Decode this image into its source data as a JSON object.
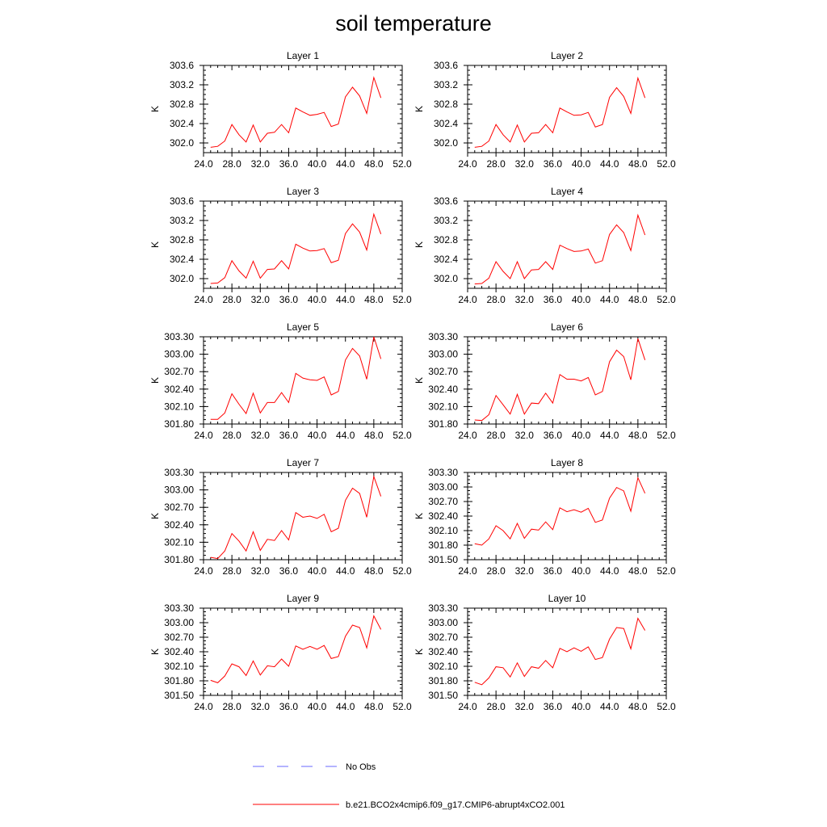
{
  "title": "soil temperature",
  "colors": {
    "model": "#ff0000",
    "obs": "#6a6aff",
    "axis": "#000000"
  },
  "legend": {
    "obs_label": "No Obs",
    "model_label": "b.e21.BCO2x4cmip6.f09_g17.CMIP6-abrupt4xCO2.001"
  },
  "chart_data": [
    {
      "type": "line",
      "title": "Layer 1",
      "ylabel": "K",
      "xlim": [
        24,
        52
      ],
      "xticks": [
        "24.0",
        "28.0",
        "32.0",
        "36.0",
        "40.0",
        "44.0",
        "48.0",
        "52.0"
      ],
      "ylim": [
        301.8,
        303.6
      ],
      "yticks": [
        "302.0",
        "302.4",
        "302.8",
        "303.2",
        "303.6"
      ],
      "series": [
        {
          "name": "b.e21.BCO2x4cmip6.f09_g17.CMIP6-abrupt4xCO2.001",
          "x": [
            25,
            26,
            27,
            28,
            29,
            30,
            31,
            32,
            33,
            34,
            35,
            36,
            37,
            38,
            39,
            40,
            41,
            42,
            43,
            44,
            45,
            46,
            47,
            48,
            49
          ],
          "y": [
            301.91,
            301.93,
            302.04,
            302.38,
            302.17,
            302.02,
            302.37,
            302.02,
            302.2,
            302.22,
            302.38,
            302.21,
            302.72,
            302.64,
            302.57,
            302.59,
            302.63,
            302.34,
            302.39,
            302.95,
            303.15,
            302.97,
            302.61,
            303.35,
            302.93
          ]
        }
      ]
    },
    {
      "type": "line",
      "title": "Layer 2",
      "ylabel": "K",
      "xlim": [
        24,
        52
      ],
      "xticks": [
        "24.0",
        "28.0",
        "32.0",
        "36.0",
        "40.0",
        "44.0",
        "48.0",
        "52.0"
      ],
      "ylim": [
        301.8,
        303.6
      ],
      "yticks": [
        "302.0",
        "302.4",
        "302.8",
        "303.2",
        "303.6"
      ],
      "series": [
        {
          "name": "b.e21.BCO2x4cmip6.f09_g17.CMIP6-abrupt4xCO2.001",
          "x": [
            25,
            26,
            27,
            28,
            29,
            30,
            31,
            32,
            33,
            34,
            35,
            36,
            37,
            38,
            39,
            40,
            41,
            42,
            43,
            44,
            45,
            46,
            47,
            48,
            49
          ],
          "y": [
            301.91,
            301.93,
            302.04,
            302.38,
            302.17,
            302.02,
            302.37,
            302.02,
            302.2,
            302.21,
            302.38,
            302.21,
            302.72,
            302.64,
            302.57,
            302.58,
            302.63,
            302.33,
            302.38,
            302.94,
            303.14,
            302.96,
            302.61,
            303.34,
            302.93
          ]
        }
      ]
    },
    {
      "type": "line",
      "title": "Layer 3",
      "ylabel": "K",
      "xlim": [
        24,
        52
      ],
      "xticks": [
        "24.0",
        "28.0",
        "32.0",
        "36.0",
        "40.0",
        "44.0",
        "48.0",
        "52.0"
      ],
      "ylim": [
        301.8,
        303.6
      ],
      "yticks": [
        "302.0",
        "302.4",
        "302.8",
        "303.2",
        "303.6"
      ],
      "series": [
        {
          "name": "b.e21.BCO2x4cmip6.f09_g17.CMIP6-abrupt4xCO2.001",
          "x": [
            25,
            26,
            27,
            28,
            29,
            30,
            31,
            32,
            33,
            34,
            35,
            36,
            37,
            38,
            39,
            40,
            41,
            42,
            43,
            44,
            45,
            46,
            47,
            48,
            49
          ],
          "y": [
            301.9,
            301.91,
            302.02,
            302.37,
            302.16,
            302.01,
            302.36,
            302.01,
            302.19,
            302.2,
            302.37,
            302.2,
            302.71,
            302.63,
            302.57,
            302.58,
            302.62,
            302.33,
            302.38,
            302.93,
            303.13,
            302.96,
            302.59,
            303.33,
            302.92
          ]
        }
      ]
    },
    {
      "type": "line",
      "title": "Layer 4",
      "ylabel": "K",
      "xlim": [
        24,
        52
      ],
      "xticks": [
        "24.0",
        "28.0",
        "32.0",
        "36.0",
        "40.0",
        "44.0",
        "48.0",
        "52.0"
      ],
      "ylim": [
        301.8,
        303.6
      ],
      "yticks": [
        "302.0",
        "302.4",
        "302.8",
        "303.2",
        "303.6"
      ],
      "series": [
        {
          "name": "b.e21.BCO2x4cmip6.f09_g17.CMIP6-abrupt4xCO2.001",
          "x": [
            25,
            26,
            27,
            28,
            29,
            30,
            31,
            32,
            33,
            34,
            35,
            36,
            37,
            38,
            39,
            40,
            41,
            42,
            43,
            44,
            45,
            46,
            47,
            48,
            49
          ],
          "y": [
            301.89,
            301.9,
            302.01,
            302.35,
            302.15,
            302.0,
            302.35,
            302.0,
            302.18,
            302.19,
            302.35,
            302.19,
            302.69,
            302.62,
            302.56,
            302.57,
            302.61,
            302.32,
            302.37,
            302.91,
            303.11,
            302.95,
            302.58,
            303.31,
            302.9
          ]
        }
      ]
    },
    {
      "type": "line",
      "title": "Layer 5",
      "ylabel": "K",
      "xlim": [
        24,
        52
      ],
      "xticks": [
        "24.0",
        "28.0",
        "32.0",
        "36.0",
        "40.0",
        "44.0",
        "48.0",
        "52.0"
      ],
      "ylim": [
        301.8,
        303.3
      ],
      "yticks": [
        "301.80",
        "302.10",
        "302.40",
        "302.70",
        "303.00",
        "303.30"
      ],
      "series": [
        {
          "name": "b.e21.BCO2x4cmip6.f09_g17.CMIP6-abrupt4xCO2.001",
          "x": [
            25,
            26,
            27,
            28,
            29,
            30,
            31,
            32,
            33,
            34,
            35,
            36,
            37,
            38,
            39,
            40,
            41,
            42,
            43,
            44,
            45,
            46,
            47,
            48,
            49
          ],
          "y": [
            301.88,
            301.88,
            301.99,
            302.32,
            302.14,
            301.98,
            302.33,
            301.99,
            302.17,
            302.17,
            302.34,
            302.17,
            302.67,
            302.59,
            302.56,
            302.55,
            302.61,
            302.3,
            302.36,
            302.9,
            303.1,
            302.97,
            302.57,
            303.3,
            302.92
          ]
        }
      ]
    },
    {
      "type": "line",
      "title": "Layer 6",
      "ylabel": "K",
      "xlim": [
        24,
        52
      ],
      "xticks": [
        "24.0",
        "28.0",
        "32.0",
        "36.0",
        "40.0",
        "44.0",
        "48.0",
        "52.0"
      ],
      "ylim": [
        301.8,
        303.3
      ],
      "yticks": [
        "301.80",
        "302.10",
        "302.40",
        "302.70",
        "303.00",
        "303.30"
      ],
      "series": [
        {
          "name": "b.e21.BCO2x4cmip6.f09_g17.CMIP6-abrupt4xCO2.001",
          "x": [
            25,
            26,
            27,
            28,
            29,
            30,
            31,
            32,
            33,
            34,
            35,
            36,
            37,
            38,
            39,
            40,
            41,
            42,
            43,
            44,
            45,
            46,
            47,
            48,
            49
          ],
          "y": [
            301.87,
            301.86,
            301.96,
            302.29,
            302.13,
            301.97,
            302.31,
            301.97,
            302.16,
            302.15,
            302.33,
            302.16,
            302.65,
            302.57,
            302.57,
            302.54,
            302.6,
            302.3,
            302.36,
            302.87,
            303.07,
            302.96,
            302.56,
            303.27,
            302.9
          ]
        }
      ]
    },
    {
      "type": "line",
      "title": "Layer 7",
      "ylabel": "K",
      "xlim": [
        24,
        52
      ],
      "xticks": [
        "24.0",
        "28.0",
        "32.0",
        "36.0",
        "40.0",
        "44.0",
        "48.0",
        "52.0"
      ],
      "ylim": [
        301.8,
        303.3
      ],
      "yticks": [
        "301.80",
        "302.10",
        "302.40",
        "302.70",
        "303.00",
        "303.30"
      ],
      "series": [
        {
          "name": "b.e21.BCO2x4cmip6.f09_g17.CMIP6-abrupt4xCO2.001",
          "x": [
            25,
            26,
            27,
            28,
            29,
            30,
            31,
            32,
            33,
            34,
            35,
            36,
            37,
            38,
            39,
            40,
            41,
            42,
            43,
            44,
            45,
            46,
            47,
            48,
            49
          ],
          "y": [
            301.84,
            301.82,
            301.95,
            302.25,
            302.12,
            301.95,
            302.28,
            301.96,
            302.15,
            302.13,
            302.3,
            302.14,
            302.61,
            302.53,
            302.55,
            302.51,
            302.58,
            302.28,
            302.34,
            302.82,
            303.03,
            302.94,
            302.53,
            303.23,
            302.89
          ]
        }
      ]
    },
    {
      "type": "line",
      "title": "Layer 8",
      "ylabel": "K",
      "xlim": [
        24,
        52
      ],
      "xticks": [
        "24.0",
        "28.0",
        "32.0",
        "36.0",
        "40.0",
        "44.0",
        "48.0",
        "52.0"
      ],
      "ylim": [
        301.5,
        303.3
      ],
      "yticks": [
        "301.50",
        "301.80",
        "302.10",
        "302.40",
        "302.70",
        "303.00",
        "303.30"
      ],
      "series": [
        {
          "name": "b.e21.BCO2x4cmip6.f09_g17.CMIP6-abrupt4xCO2.001",
          "x": [
            25,
            26,
            27,
            28,
            29,
            30,
            31,
            32,
            33,
            34,
            35,
            36,
            37,
            38,
            39,
            40,
            41,
            42,
            43,
            44,
            45,
            46,
            47,
            48,
            49
          ],
          "y": [
            301.83,
            301.8,
            301.93,
            302.2,
            302.1,
            301.93,
            302.25,
            301.94,
            302.13,
            302.11,
            302.28,
            302.12,
            302.57,
            302.49,
            302.53,
            302.48,
            302.56,
            302.27,
            302.32,
            302.77,
            302.99,
            302.92,
            302.5,
            303.19,
            302.87
          ]
        }
      ]
    },
    {
      "type": "line",
      "title": "Layer 9",
      "ylabel": "K",
      "xlim": [
        24,
        52
      ],
      "xticks": [
        "24.0",
        "28.0",
        "32.0",
        "36.0",
        "40.0",
        "44.0",
        "48.0",
        "52.0"
      ],
      "ylim": [
        301.5,
        303.3
      ],
      "yticks": [
        "301.50",
        "301.80",
        "302.10",
        "302.40",
        "302.70",
        "303.00",
        "303.30"
      ],
      "series": [
        {
          "name": "b.e21.BCO2x4cmip6.f09_g17.CMIP6-abrupt4xCO2.001",
          "x": [
            25,
            26,
            27,
            28,
            29,
            30,
            31,
            32,
            33,
            34,
            35,
            36,
            37,
            38,
            39,
            40,
            41,
            42,
            43,
            44,
            45,
            46,
            47,
            48,
            49
          ],
          "y": [
            301.81,
            301.76,
            301.9,
            302.15,
            302.09,
            301.91,
            302.21,
            301.92,
            302.11,
            302.09,
            302.25,
            302.1,
            302.52,
            302.45,
            302.51,
            302.45,
            302.53,
            302.26,
            302.3,
            302.72,
            302.95,
            302.9,
            302.48,
            303.14,
            302.86
          ]
        }
      ]
    },
    {
      "type": "line",
      "title": "Layer 10",
      "ylabel": "K",
      "xlim": [
        24,
        52
      ],
      "xticks": [
        "24.0",
        "28.0",
        "32.0",
        "36.0",
        "40.0",
        "44.0",
        "48.0",
        "52.0"
      ],
      "ylim": [
        301.5,
        303.3
      ],
      "yticks": [
        "301.50",
        "301.80",
        "302.10",
        "302.40",
        "302.70",
        "303.00",
        "303.30"
      ],
      "series": [
        {
          "name": "b.e21.BCO2x4cmip6.f09_g17.CMIP6-abrupt4xCO2.001",
          "x": [
            25,
            26,
            27,
            28,
            29,
            30,
            31,
            32,
            33,
            34,
            35,
            36,
            37,
            38,
            39,
            40,
            41,
            42,
            43,
            44,
            45,
            46,
            47,
            48,
            49
          ],
          "y": [
            301.77,
            301.72,
            301.86,
            302.09,
            302.07,
            301.88,
            302.17,
            301.89,
            302.09,
            302.06,
            302.22,
            302.07,
            302.47,
            302.4,
            302.48,
            302.41,
            302.5,
            302.24,
            302.28,
            302.66,
            302.9,
            302.88,
            302.46,
            303.09,
            302.84
          ]
        }
      ]
    }
  ]
}
